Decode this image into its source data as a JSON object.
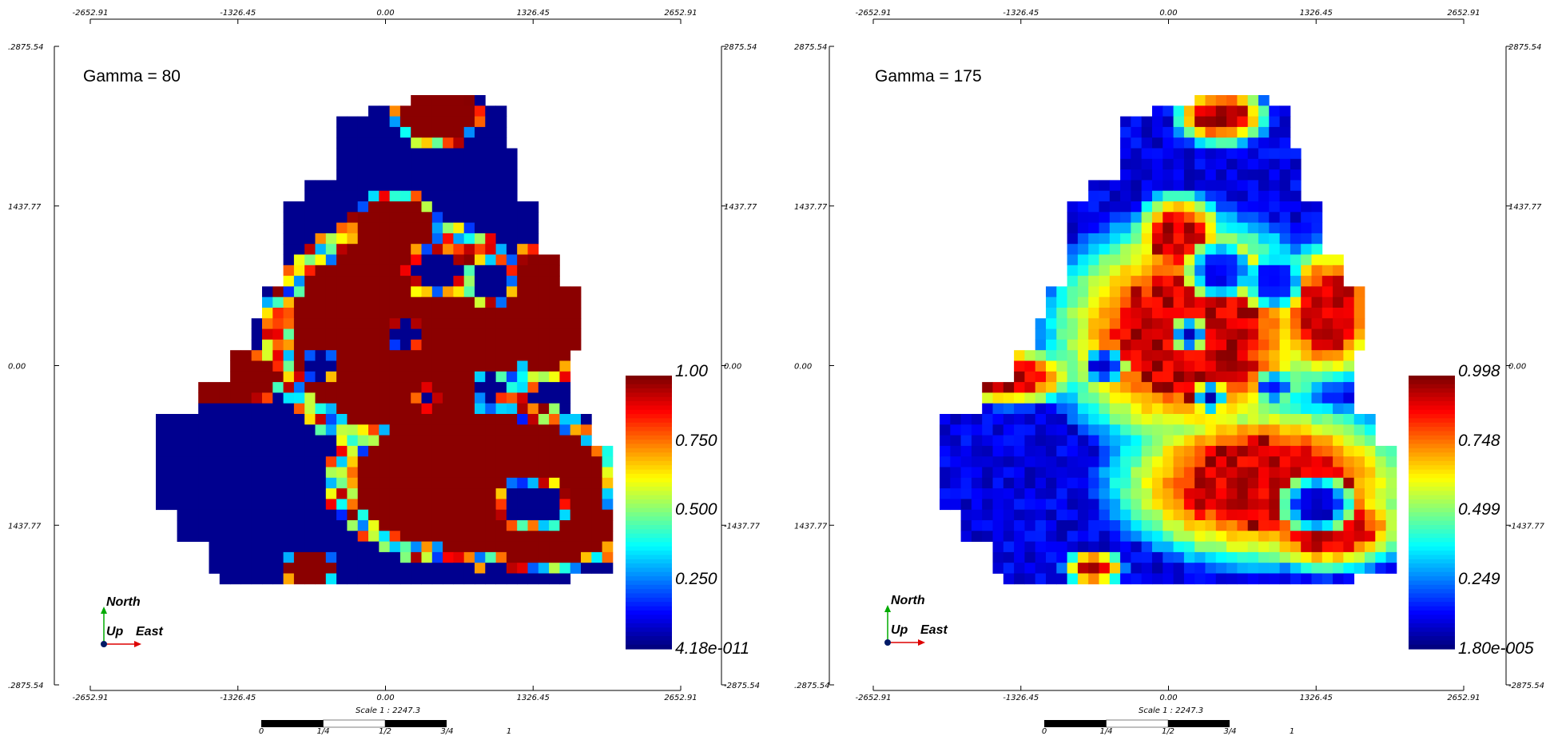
{
  "panels": [
    {
      "title": "Gamma = 80",
      "colorbar": {
        "labels": [
          "1.00",
          "0.750",
          "0.500",
          "0.250",
          "4.18e-011"
        ]
      },
      "x_ticks": [
        "-2652.91",
        "-1326.45",
        "0.00",
        "1326.45",
        "2652.91"
      ],
      "y_ticks_left": [
        "2875.54",
        "1437.77",
        "0.00",
        "-1437.77",
        "-2875.54"
      ],
      "y_ticks_right": [
        "2875.54",
        "1437.77",
        "0.00",
        "-1437.77",
        "-2875.54"
      ],
      "y_ticks_left_display": [
        ".2875.54",
        "1437.77",
        "0.00",
        "1437.77",
        ".2875.54"
      ],
      "y_ticks_right_display": [
        "2875.54",
        "1437.77",
        "0.00",
        "-1437.77",
        "-2875.54"
      ],
      "scale": "Scale 1 : 2247.3",
      "scale_ticks": [
        "0",
        "1/4",
        "1/2",
        "3/4",
        "1"
      ],
      "compass": {
        "north": "North",
        "up": "Up",
        "east": "East"
      }
    },
    {
      "title": "Gamma = 175",
      "colorbar": {
        "labels": [
          "0.998",
          "0.748",
          "0.499",
          "0.249",
          "1.80e-005"
        ]
      },
      "x_ticks": [
        "-2652.91",
        "-1326.45",
        "0.00",
        "1326.45",
        "2652.91"
      ],
      "y_ticks_left": [
        "2875.54",
        "1437.77",
        "0.00",
        "-1437.77",
        "-2875.54"
      ],
      "y_ticks_right": [
        "2875.54",
        "1437.77",
        "0.00",
        "-1437.77",
        "-2875.54"
      ],
      "y_ticks_left_display": [
        "2875.54",
        "1437.77",
        "0.00",
        "1437.77",
        ".2875.54"
      ],
      "y_ticks_right_display": [
        "2875.54",
        "1437.77",
        "0.00",
        "-1437.77",
        "-2875.54"
      ],
      "scale": "Scale 1 : 2247.3",
      "scale_ticks": [
        "0",
        "1/4",
        "1/2",
        "3/4",
        "1"
      ],
      "compass": {
        "north": "North",
        "up": "Up",
        "east": "East"
      }
    }
  ],
  "colors": {
    "low": "#00008f",
    "mid": "#00ffff",
    "yellow": "#ffff00",
    "high": "#8b0000",
    "compass_north": "#00aa00",
    "compass_east": "#dd0000"
  },
  "map_data": {
    "type": "heatmap",
    "grid": {
      "cols": 42,
      "rows": 46
    },
    "description_units": "probability 0-1"
  }
}
